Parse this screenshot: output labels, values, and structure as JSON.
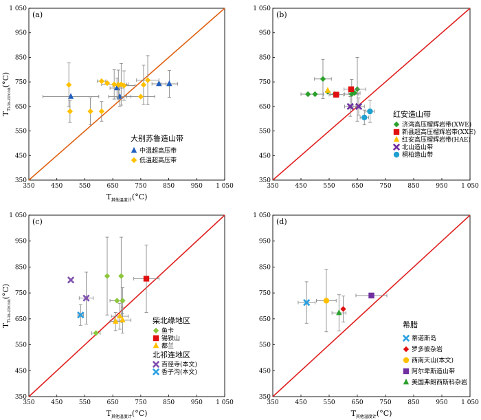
{
  "chart_data": [
    {
      "type": "scatter",
      "panel_label": "(a)",
      "xlabel": "T其他温度计(°C)",
      "ylabel": "TTi-in-zircon(°C)",
      "xlim": [
        350,
        1050
      ],
      "ylim": [
        350,
        1050
      ],
      "xticks": [
        "350",
        "450",
        "550",
        "650",
        "750",
        "850",
        "950",
        "1 050"
      ],
      "yticks": [
        "350",
        "450",
        "550",
        "650",
        "750",
        "850",
        "950",
        "1 050"
      ],
      "ref_line": {
        "color": "#e06010",
        "points": [
          [
            350,
            350
          ],
          [
            1050,
            1050
          ]
        ]
      },
      "legend_title": "大别苏鲁造山带",
      "legend_position": "center-right",
      "series": [
        {
          "name": "中温超高压带",
          "marker": "triangle",
          "color": "#1f5fbf",
          "points": [
            {
              "x": 500,
              "y": 690,
              "xerr": 100,
              "yerr": 0
            },
            {
              "x": 665,
              "y": 725,
              "xerr": 25,
              "yerr": 40
            },
            {
              "x": 675,
              "y": 690,
              "xerr": 40,
              "yerr": 40
            },
            {
              "x": 815,
              "y": 742,
              "xerr": 25,
              "yerr": 0
            },
            {
              "x": 852,
              "y": 742,
              "xerr": 30,
              "yerr": 55
            }
          ]
        },
        {
          "name": "低温超高压带",
          "marker": "diamond",
          "color": "#ffc000",
          "points": [
            {
              "x": 493,
              "y": 738,
              "xerr": 0,
              "yerr": 90
            },
            {
              "x": 497,
              "y": 630,
              "xerr": 0,
              "yerr": 45
            },
            {
              "x": 570,
              "y": 630,
              "xerr": 0,
              "yerr": 55
            },
            {
              "x": 610,
              "y": 630,
              "xerr": 0,
              "yerr": 40
            },
            {
              "x": 610,
              "y": 753,
              "xerr": 15,
              "yerr": 0
            },
            {
              "x": 630,
              "y": 745,
              "xerr": 0,
              "yerr": 0
            },
            {
              "x": 655,
              "y": 740,
              "xerr": 45,
              "yerr": 60
            },
            {
              "x": 670,
              "y": 738,
              "xerr": 0,
              "yerr": 60
            },
            {
              "x": 680,
              "y": 740,
              "xerr": 25,
              "yerr": 85
            },
            {
              "x": 690,
              "y": 735,
              "xerr": 40,
              "yerr": 60
            },
            {
              "x": 750,
              "y": 690,
              "xerr": 50,
              "yerr": 0
            },
            {
              "x": 760,
              "y": 738,
              "xerr": 0,
              "yerr": 80
            },
            {
              "x": 775,
              "y": 757,
              "xerr": 40,
              "yerr": 100
            }
          ]
        }
      ]
    },
    {
      "type": "scatter",
      "panel_label": "(b)",
      "xlabel": "",
      "ylabel": "",
      "xlim": [
        350,
        1050
      ],
      "ylim": [
        350,
        1050
      ],
      "xticks": [
        "350",
        "450",
        "550",
        "650",
        "750",
        "850",
        "950",
        "1 050"
      ],
      "yticks": [
        "350",
        "450",
        "550",
        "650",
        "750",
        "850",
        "950",
        "1 050"
      ],
      "ref_line": {
        "color": "#e02020",
        "points": [
          [
            350,
            350
          ],
          [
            1050,
            1050
          ]
        ]
      },
      "legend_title": "红安造山带",
      "legend_position": "bottom-right",
      "series": [
        {
          "name": "济湾高压榴辉岩带(XWE)",
          "marker": "diamond",
          "color": "#2ca02c",
          "points": [
            {
              "x": 475,
              "y": 700,
              "xerr": 25,
              "yerr": 0
            },
            {
              "x": 500,
              "y": 700,
              "xerr": 30,
              "yerr": 0
            },
            {
              "x": 528,
              "y": 762,
              "xerr": 30,
              "yerr": 80
            },
            {
              "x": 545,
              "y": 710,
              "xerr": 0,
              "yerr": 0
            },
            {
              "x": 570,
              "y": 700,
              "xerr": 15,
              "yerr": 0
            },
            {
              "x": 630,
              "y": 700,
              "xerr": 25,
              "yerr": 60
            },
            {
              "x": 640,
              "y": 705,
              "xerr": 20,
              "yerr": 0
            },
            {
              "x": 650,
              "y": 720,
              "xerr": 30,
              "yerr": 130
            }
          ]
        },
        {
          "name": "新县超高压榴辉岩带(XXE)",
          "marker": "square",
          "color": "#e01010",
          "points": [
            {
              "x": 575,
              "y": 698,
              "xerr": 25,
              "yerr": 0
            },
            {
              "x": 628,
              "y": 720,
              "xerr": 25,
              "yerr": 0
            }
          ]
        },
        {
          "name": "红安高压榴辉岩带(HAE)",
          "marker": "triangle",
          "color": "#ffc000",
          "points": [
            {
              "x": 545,
              "y": 715,
              "xerr": 0,
              "yerr": 0
            }
          ]
        },
        {
          "name": "北山造山带",
          "marker": "x",
          "color": "#7030a0",
          "points": [
            {
              "x": 625,
              "y": 650,
              "xerr": 20,
              "yerr": 40
            },
            {
              "x": 655,
              "y": 650,
              "xerr": 20,
              "yerr": 35
            }
          ]
        },
        {
          "name": "桐柏造山带",
          "marker": "circle",
          "color": "#1fa0d0",
          "points": [
            {
              "x": 675,
              "y": 605,
              "xerr": 15,
              "yerr": 30
            },
            {
              "x": 695,
              "y": 630,
              "xerr": 15,
              "yerr": 45
            }
          ]
        }
      ]
    },
    {
      "type": "scatter",
      "panel_label": "(c)",
      "xlabel": "T其他温度计(°C)",
      "ylabel": "TTi-in-zircon(°C)",
      "xlim": [
        350,
        1050
      ],
      "ylim": [
        350,
        1050
      ],
      "xticks": [
        "350",
        "450",
        "550",
        "650",
        "750",
        "850",
        "950",
        "1 050"
      ],
      "yticks": [
        "350",
        "450",
        "550",
        "650",
        "750",
        "850",
        "950",
        "1 050"
      ],
      "ref_line": {
        "color": "#e02020",
        "points": [
          [
            350,
            350
          ],
          [
            1050,
            1050
          ]
        ]
      },
      "legend_title": "柴北缘地区",
      "legend_title_2": "北祁连地区",
      "legend_position": "bottom-right",
      "series": [
        {
          "name": "鱼卡",
          "marker": "diamond",
          "color": "#8dc63f",
          "points": [
            {
              "x": 590,
              "y": 595,
              "xerr": 15,
              "yerr": 0
            },
            {
              "x": 630,
              "y": 815,
              "xerr": 0,
              "yerr": 150
            },
            {
              "x": 665,
              "y": 720,
              "xerr": 25,
              "yerr": 0
            },
            {
              "x": 680,
              "y": 815,
              "xerr": 0,
              "yerr": 150
            },
            {
              "x": 685,
              "y": 720,
              "xerr": 0,
              "yerr": 50
            }
          ]
        },
        {
          "name": "锡铁山",
          "marker": "square",
          "color": "#e01010",
          "points": [
            {
              "x": 770,
              "y": 805,
              "xerr": 45,
              "yerr": 130
            }
          ]
        },
        {
          "name": "都兰",
          "marker": "triangle",
          "color": "#ffc000",
          "points": [
            {
              "x": 660,
              "y": 640,
              "xerr": 20,
              "yerr": 35
            },
            {
              "x": 675,
              "y": 660,
              "xerr": 30,
              "yerr": 50
            },
            {
              "x": 685,
              "y": 645,
              "xerr": 30,
              "yerr": 50
            }
          ]
        },
        {
          "name": "百径寺(本文)",
          "marker": "x",
          "color": "#8050b0",
          "points": [
            {
              "x": 500,
              "y": 800,
              "xerr": 0,
              "yerr": 0
            },
            {
              "x": 555,
              "y": 730,
              "xerr": 25,
              "yerr": 100
            }
          ]
        },
        {
          "name": "香子沟(本文)",
          "marker": "x",
          "color": "#2aa0e0",
          "points": [
            {
              "x": 535,
              "y": 665,
              "xerr": 10,
              "yerr": 40
            }
          ]
        }
      ]
    },
    {
      "type": "scatter",
      "panel_label": "(d)",
      "xlabel": "T其他温度计(°C)",
      "ylabel": "",
      "xlim": [
        350,
        1050
      ],
      "ylim": [
        350,
        1050
      ],
      "xticks": [
        "350",
        "450",
        "550",
        "650",
        "750",
        "850",
        "950",
        "1 050"
      ],
      "yticks": [
        "350",
        "450",
        "550",
        "650",
        "750",
        "850",
        "950",
        "1 050"
      ],
      "ref_line": {
        "color": "#e02020",
        "points": [
          [
            350,
            350
          ],
          [
            1050,
            1050
          ]
        ]
      },
      "legend_title": "希腊",
      "legend_position": "bottom-right",
      "series": [
        {
          "name": "蒂诺斯岛",
          "marker": "x",
          "color": "#2aa0e0",
          "points": [
            {
              "x": 470,
              "y": 713,
              "xerr": 30,
              "yerr": 80
            }
          ]
        },
        {
          "name": "罗多彼杂岩",
          "marker": "diamond",
          "color": "#e01010",
          "points": [
            {
              "x": 600,
              "y": 688,
              "xerr": 0,
              "yerr": 50
            }
          ]
        },
        {
          "name": "西南天山(本文)",
          "marker": "circle",
          "color": "#ffc000",
          "points": [
            {
              "x": 540,
              "y": 720,
              "xerr": 35,
              "yerr": 120
            }
          ]
        },
        {
          "name": "阿尔卑斯造山带",
          "marker": "square",
          "color": "#7030a0",
          "points": [
            {
              "x": 700,
              "y": 740,
              "xerr": 55,
              "yerr": 0
            }
          ]
        },
        {
          "name": "美国弗朗西斯科杂岩",
          "marker": "triangle",
          "color": "#2ca02c",
          "points": [
            {
              "x": 585,
              "y": 673,
              "xerr": 25,
              "yerr": 70
            }
          ]
        }
      ]
    }
  ]
}
